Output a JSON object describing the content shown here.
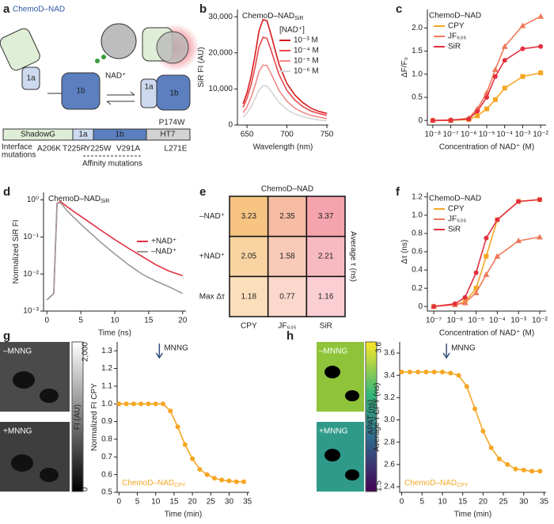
{
  "panel_labels": [
    "a",
    "b",
    "c",
    "d",
    "e",
    "f",
    "g",
    "h"
  ],
  "schematic": {
    "title": "ChemoD–NAD",
    "ligand": "NAD⁺",
    "domains_left": [
      "1a",
      "1b"
    ],
    "domains_right": [
      "1a",
      "1b"
    ],
    "bar": [
      "ShadowG",
      "1a",
      "1b",
      "HT7"
    ],
    "mutation_top": "P174W",
    "interface_label": [
      "Interface",
      "mutations"
    ],
    "interface": [
      "A206K",
      "T225R"
    ],
    "affinity": [
      "Y225W",
      "V291A"
    ],
    "ht7_mutation": "L271E",
    "affinity_label": "Affinity mutations"
  },
  "micrographs": {
    "g": {
      "labels": [
        "–MNNG",
        "+MNNG"
      ],
      "colorbar_title": "FI (AU)",
      "colorbar_ticks": [
        {
          "value": 2000,
          "label": "2,000"
        },
        0
      ]
    },
    "h": {
      "labels": [
        "–MNNG",
        "+MNNG"
      ],
      "colorbar_title": "APAT (ns)",
      "colorbar_ticks": [
        3.6,
        1.5
      ]
    }
  },
  "chart_data": [
    {
      "panel": "b",
      "type": "line",
      "title": "ChemoD–NAD",
      "title_sub": "SiR",
      "x_label": "Wavelength (nm)",
      "y_label": "SiR FI (AU)",
      "x": [
        645,
        650,
        655,
        660,
        665,
        670,
        675,
        680,
        690,
        700,
        710,
        720,
        730,
        740,
        750
      ],
      "series": [
        {
          "name": "10⁻³ M",
          "color": "#d7191c",
          "values": [
            5900,
            8900,
            13300,
            19200,
            26000,
            29200,
            28900,
            25100,
            16800,
            11500,
            8300,
            6200,
            4700,
            3800,
            3200
          ]
        },
        {
          "name": "10⁻⁴ M",
          "color": "#e8474a",
          "values": [
            4900,
            7400,
            11000,
            15900,
            21600,
            24300,
            24000,
            20800,
            14000,
            9600,
            6900,
            5100,
            3900,
            3200,
            2700
          ]
        },
        {
          "name": "10⁻⁵ M",
          "color": "#f08a8a",
          "values": [
            3400,
            5000,
            7600,
            10900,
            14800,
            16600,
            16500,
            14300,
            9600,
            6600,
            4700,
            3500,
            2700,
            2200,
            1800
          ]
        },
        {
          "name": "10⁻⁶ M",
          "color": "#d4d4d4",
          "values": [
            2200,
            3300,
            5000,
            7200,
            9700,
            10900,
            10800,
            9400,
            6300,
            4300,
            3100,
            2300,
            1800,
            1400,
            1200
          ]
        }
      ],
      "legend": "upper right",
      "legend_title": "[NAD⁺]",
      "xlim": [
        638,
        752
      ],
      "xticks": [
        650,
        700,
        750
      ],
      "ylim": [
        0,
        32000
      ],
      "yticks": [
        0,
        {
          "value": 10000,
          "label": "10,000"
        },
        {
          "value": 20000,
          "label": "20,000"
        },
        {
          "value": 30000,
          "label": "30,000"
        }
      ]
    },
    {
      "panel": "c",
      "type": "line",
      "markers": true,
      "x_label": "Concentration of NAD⁺ (M)",
      "y_label": "ΔF/F₀",
      "xlog": true,
      "x": [
        1e-08,
        1e-07,
        1e-06,
        3e-06,
        1e-05,
        3e-05,
        0.0001,
        0.001,
        0.01
      ],
      "series": [
        {
          "name": "CPY",
          "color": "#f5a623",
          "marker": "square",
          "values": [
            0,
            0,
            0.02,
            0.1,
            0.25,
            0.45,
            0.7,
            0.95,
            1.03
          ]
        },
        {
          "name": "JF₆₃₅",
          "color": "#ef7a5a",
          "marker": "triangle",
          "values": [
            0,
            0,
            0.05,
            0.25,
            0.6,
            1.1,
            1.6,
            2.05,
            2.25
          ]
        },
        {
          "name": "SiR",
          "color": "#e3303f",
          "marker": "circle",
          "values": [
            0,
            0.01,
            0.03,
            0.2,
            0.5,
            0.95,
            1.3,
            1.55,
            1.6
          ]
        }
      ],
      "legend": "upper left",
      "legend_title": "ChemoD–NAD",
      "xlim": [
        5e-09,
        0.02
      ],
      "xticks": [
        {
          "value": 1e-08,
          "label": "10⁻⁸"
        },
        {
          "value": 1e-07,
          "label": "10⁻⁷"
        },
        {
          "value": 1e-06,
          "label": "10⁻⁶"
        },
        {
          "value": 1e-05,
          "label": "10⁻⁵"
        },
        {
          "value": 0.0001,
          "label": "10⁻⁴"
        },
        {
          "value": 0.001,
          "label": "10⁻³"
        },
        {
          "value": 0.01,
          "label": "10⁻²"
        }
      ],
      "ylim": [
        -0.1,
        2.4
      ],
      "yticks": [
        0,
        0.5,
        {
          "value": 1,
          "label": "1.0"
        },
        1.5,
        {
          "value": 2,
          "label": "2.0"
        }
      ]
    },
    {
      "panel": "d",
      "type": "line",
      "title": "ChemoD–NAD",
      "title_sub": "SiR",
      "x_label": "Time (ns)",
      "y_label": "Normalized SiR FI",
      "ylog": true,
      "x": [
        0,
        1,
        1.5,
        2,
        3,
        4,
        5,
        6,
        8,
        10,
        12,
        14,
        16,
        18,
        20
      ],
      "series": [
        {
          "name": "+NAD⁺",
          "color": "#e3303f",
          "values": [
            0.002,
            0.003,
            0.8,
            0.9,
            0.65,
            0.48,
            0.36,
            0.27,
            0.15,
            0.085,
            0.05,
            0.03,
            0.018,
            0.012,
            0.009
          ]
        },
        {
          "name": "–NAD⁺",
          "color": "#9a9a9a",
          "values": [
            0.002,
            0.003,
            0.8,
            0.85,
            0.5,
            0.33,
            0.22,
            0.15,
            0.07,
            0.035,
            0.018,
            0.01,
            0.0065,
            0.0045,
            0.003
          ]
        }
      ],
      "legend": "center right",
      "xlim": [
        -0.5,
        20.5
      ],
      "xticks": [
        0,
        5,
        10,
        15,
        20
      ],
      "ylim": [
        0.001,
        1.6
      ],
      "yticks": [
        {
          "value": 0.001,
          "label": "10⁻³"
        },
        {
          "value": 0.01,
          "label": "10⁻²"
        },
        {
          "value": 0.1,
          "label": "10⁻¹"
        },
        {
          "value": 1,
          "label": "10⁰"
        }
      ]
    },
    {
      "panel": "e",
      "type": "heatmap",
      "title": "ChemoD–NAD",
      "side_label": "Average τ (ns)",
      "rows": [
        "–NAD⁺",
        "+NAD⁺",
        "Max Δτ"
      ],
      "columns": [
        "CPY",
        "JF₆₃₅",
        "SiR"
      ],
      "colors": [
        "#f7c27e",
        "#f3a98b",
        "#f5a3ac"
      ],
      "values": [
        [
          3.23,
          2.35,
          3.37
        ],
        [
          2.05,
          1.58,
          2.21
        ],
        [
          1.18,
          0.77,
          1.16
        ]
      ]
    },
    {
      "panel": "f",
      "type": "line",
      "markers": true,
      "x_label": "Concentration of NAD⁺ (M)",
      "y_label": "Δτ (ns)",
      "xlog": true,
      "x": [
        1e-07,
        1e-06,
        3e-06,
        1e-05,
        3e-05,
        0.0001,
        0.001,
        0.01
      ],
      "series": [
        {
          "name": "CPY",
          "color": "#f5a623",
          "marker": "square",
          "values": [
            0,
            0.02,
            0.05,
            0.2,
            0.55,
            0.95,
            1.15,
            1.17
          ]
        },
        {
          "name": "JF₆₃₅",
          "color": "#ef7a5a",
          "marker": "triangle",
          "values": [
            0,
            0.02,
            0.04,
            0.15,
            0.35,
            0.55,
            0.72,
            0.76
          ]
        },
        {
          "name": "SiR",
          "color": "#e3303f",
          "marker": "circle",
          "values": [
            0,
            0.03,
            0.1,
            0.37,
            0.75,
            0.95,
            1.15,
            1.17
          ]
        }
      ],
      "legend": "upper left",
      "legend_title": "ChemoD–NAD",
      "xlim": [
        5e-08,
        0.02
      ],
      "xticks": [
        {
          "value": 1e-07,
          "label": "10⁻⁷"
        },
        {
          "value": 1e-06,
          "label": "10⁻⁶"
        },
        {
          "value": 1e-05,
          "label": "10⁻⁵"
        },
        {
          "value": 0.0001,
          "label": "10⁻⁴"
        },
        {
          "value": 0.001,
          "label": "10⁻³"
        },
        {
          "value": 0.01,
          "label": "10⁻²"
        }
      ],
      "ylim": [
        -0.05,
        1.25
      ],
      "yticks": [
        0,
        0.2,
        0.4,
        0.6,
        0.8,
        {
          "value": 1,
          "label": "1.0"
        },
        1.2
      ]
    },
    {
      "panel": "g",
      "type": "line",
      "markers": true,
      "x_label": "Time (min)",
      "y_label": "Normalized FI CPY",
      "label": "ChemoD–NAD",
      "label_sub": "CPY",
      "annotation": {
        "text": "MNNG",
        "x": 11
      },
      "x": [
        0,
        2,
        4,
        6,
        8,
        10,
        12,
        14,
        16,
        18,
        20,
        22,
        24,
        26,
        28,
        30,
        32,
        34
      ],
      "series": [
        {
          "color": "#f5a623",
          "marker": "circle",
          "values": [
            1,
            1,
            1,
            1,
            1,
            1,
            1,
            0.96,
            0.87,
            0.77,
            0.69,
            0.63,
            0.6,
            0.58,
            0.57,
            0.565,
            0.56,
            0.56
          ]
        }
      ],
      "xlim": [
        -0.5,
        35.5
      ],
      "xticks": [
        0,
        5,
        10,
        15,
        20,
        25,
        30,
        35
      ],
      "ylim": [
        0.5,
        1.35
      ],
      "yticks": [
        0.5,
        0.6,
        0.7,
        0.8,
        0.9,
        {
          "value": 1,
          "label": "1.0"
        },
        1.1,
        1.2,
        1.3
      ]
    },
    {
      "panel": "h",
      "type": "line",
      "markers": true,
      "x_label": "Time (min)",
      "y_label": "Average τ CPY (ns)",
      "label": "ChemoD–NAD",
      "label_sub": "CPY",
      "annotation": {
        "text": "MNNG",
        "x": 11
      },
      "x": [
        0,
        2,
        4,
        6,
        8,
        10,
        12,
        14,
        16,
        18,
        20,
        22,
        24,
        26,
        28,
        30,
        32,
        34
      ],
      "series": [
        {
          "color": "#f5a623",
          "marker": "circle",
          "values": [
            3.43,
            3.43,
            3.43,
            3.43,
            3.43,
            3.43,
            3.42,
            3.4,
            3.3,
            3.1,
            2.9,
            2.75,
            2.65,
            2.6,
            2.56,
            2.55,
            2.54,
            2.54
          ]
        }
      ],
      "xlim": [
        -0.5,
        35.5
      ],
      "xticks": [
        0,
        5,
        10,
        15,
        20,
        25,
        30,
        35
      ],
      "ylim": [
        2.35,
        3.7
      ],
      "yticks": [
        2.4,
        2.6,
        2.8,
        {
          "value": 3,
          "label": "3.0"
        },
        3.2,
        3.4,
        3.6
      ]
    }
  ]
}
